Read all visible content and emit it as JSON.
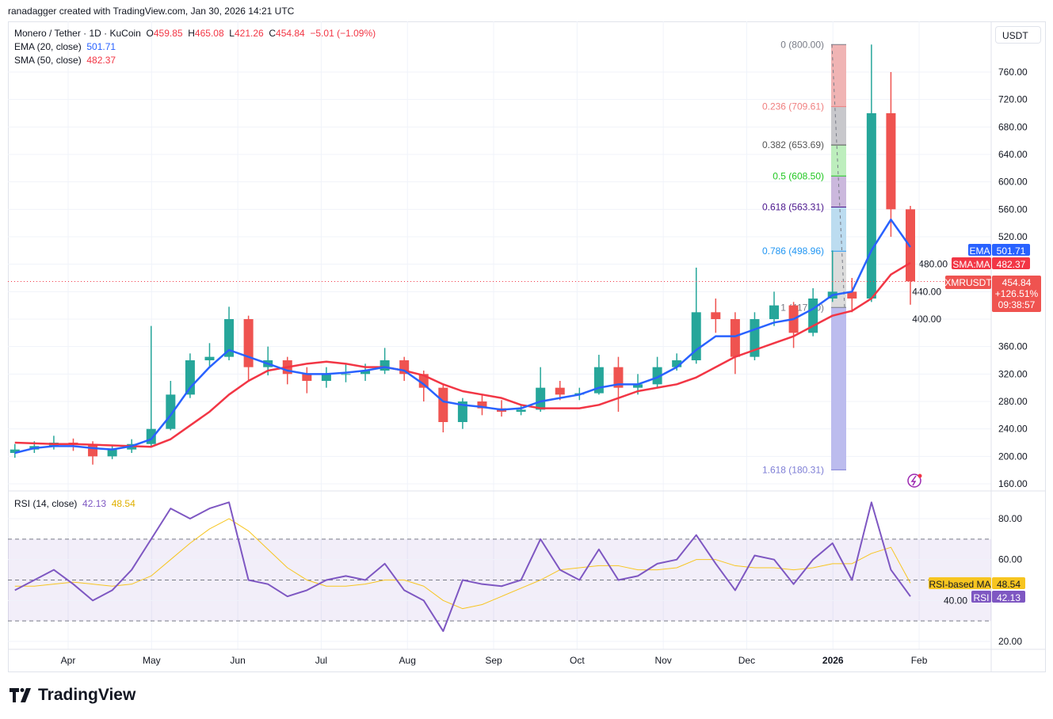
{
  "credit": "ranadagger created with TradingView.com, Jan 30, 2026 14:21 UTC",
  "legend": {
    "symbol": "Monero / Tether · 1D · KuCoin",
    "o_label": "O",
    "o": "459.85",
    "h_label": "H",
    "h": "465.08",
    "l_label": "L",
    "l": "421.26",
    "c_label": "C",
    "c": "454.84",
    "change": "−5.01 (−1.09%)",
    "ema_label": "EMA (20, close)",
    "ema": "501.71",
    "sma_label": "SMA (50, close)",
    "sma": "482.37",
    "rsi_label": "RSI (14, close)",
    "rsi": "42.13",
    "rsi_ma": "48.54"
  },
  "currency": "USDT",
  "brand": "TradingView",
  "badges": {
    "ema_name": "EMA",
    "ema_value": "501.71",
    "sma_name": "SMA:MA",
    "sma_value": "482.37",
    "symbol_name": "XMRUSDT",
    "price": "454.84",
    "change_pct": "+126.51%",
    "countdown": "09:38:57",
    "rsi_ma_name": "RSI-based MA",
    "rsi_ma_value": "48.54",
    "rsi_name": "RSI",
    "rsi_value": "42.13"
  },
  "colors": {
    "up": "#26a69a",
    "down": "#ef5350",
    "ema": "#2962ff",
    "sma": "#f23645",
    "rsi": "#7e57c2",
    "rsi_ma": "#f7c520"
  },
  "chart_data": [
    {
      "type": "candlestick",
      "title": "Monero / Tether · 1D · KuCoin",
      "ylim": [
        150,
        820
      ],
      "y_ticks": [
        "160.00",
        "200.00",
        "240.00",
        "280.00",
        "320.00",
        "360.00",
        "400.00",
        "440.00",
        "480.00",
        "520.00",
        "560.00",
        "600.00",
        "640.00",
        "680.00",
        "720.00",
        "760.00"
      ],
      "x_ticks": [
        {
          "label": "Apr",
          "date": "2025-04-01"
        },
        {
          "label": "May",
          "date": "2025-05-01"
        },
        {
          "label": "Jun",
          "date": "2025-06-01"
        },
        {
          "label": "Jul",
          "date": "2025-07-01"
        },
        {
          "label": "Aug",
          "date": "2025-08-01"
        },
        {
          "label": "Sep",
          "date": "2025-09-01"
        },
        {
          "label": "Oct",
          "date": "2025-10-01"
        },
        {
          "label": "Nov",
          "date": "2025-11-01"
        },
        {
          "label": "Dec",
          "date": "2025-12-01"
        },
        {
          "label": "2026",
          "date": "2026-01-01"
        },
        {
          "label": "Feb",
          "date": "2026-02-01"
        }
      ],
      "last_price": 454.84,
      "candles_weekly_approx": [
        {
          "d": "2025-03-10",
          "o": 205,
          "h": 218,
          "l": 198,
          "c": 210
        },
        {
          "d": "2025-03-17",
          "o": 210,
          "h": 222,
          "l": 205,
          "c": 215
        },
        {
          "d": "2025-03-24",
          "o": 215,
          "h": 230,
          "l": 210,
          "c": 220
        },
        {
          "d": "2025-03-31",
          "o": 220,
          "h": 226,
          "l": 208,
          "c": 218
        },
        {
          "d": "2025-04-07",
          "o": 218,
          "h": 222,
          "l": 188,
          "c": 200
        },
        {
          "d": "2025-04-14",
          "o": 200,
          "h": 215,
          "l": 196,
          "c": 210
        },
        {
          "d": "2025-04-21",
          "o": 210,
          "h": 225,
          "l": 205,
          "c": 218
        },
        {
          "d": "2025-04-28",
          "o": 218,
          "h": 390,
          "l": 215,
          "c": 240
        },
        {
          "d": "2025-05-05",
          "o": 240,
          "h": 310,
          "l": 238,
          "c": 290
        },
        {
          "d": "2025-05-12",
          "o": 290,
          "h": 350,
          "l": 285,
          "c": 340
        },
        {
          "d": "2025-05-19",
          "o": 340,
          "h": 365,
          "l": 330,
          "c": 345
        },
        {
          "d": "2025-05-26",
          "o": 345,
          "h": 418,
          "l": 340,
          "c": 400
        },
        {
          "d": "2025-06-02",
          "o": 400,
          "h": 405,
          "l": 310,
          "c": 330
        },
        {
          "d": "2025-06-09",
          "o": 330,
          "h": 360,
          "l": 318,
          "c": 340
        },
        {
          "d": "2025-06-16",
          "o": 340,
          "h": 345,
          "l": 305,
          "c": 320
        },
        {
          "d": "2025-06-23",
          "o": 320,
          "h": 330,
          "l": 292,
          "c": 310
        },
        {
          "d": "2025-06-30",
          "o": 310,
          "h": 330,
          "l": 300,
          "c": 320
        },
        {
          "d": "2025-07-07",
          "o": 320,
          "h": 335,
          "l": 308,
          "c": 320
        },
        {
          "d": "2025-07-14",
          "o": 320,
          "h": 335,
          "l": 310,
          "c": 325
        },
        {
          "d": "2025-07-21",
          "o": 325,
          "h": 358,
          "l": 320,
          "c": 340
        },
        {
          "d": "2025-07-28",
          "o": 340,
          "h": 345,
          "l": 310,
          "c": 320
        },
        {
          "d": "2025-08-04",
          "o": 320,
          "h": 325,
          "l": 280,
          "c": 300
        },
        {
          "d": "2025-08-11",
          "o": 300,
          "h": 305,
          "l": 235,
          "c": 250
        },
        {
          "d": "2025-08-18",
          "o": 250,
          "h": 285,
          "l": 240,
          "c": 280
        },
        {
          "d": "2025-08-25",
          "o": 280,
          "h": 290,
          "l": 260,
          "c": 270
        },
        {
          "d": "2025-09-01",
          "o": 270,
          "h": 282,
          "l": 258,
          "c": 265
        },
        {
          "d": "2025-09-08",
          "o": 265,
          "h": 275,
          "l": 260,
          "c": 268
        },
        {
          "d": "2025-09-15",
          "o": 268,
          "h": 330,
          "l": 265,
          "c": 300
        },
        {
          "d": "2025-09-22",
          "o": 300,
          "h": 310,
          "l": 282,
          "c": 290
        },
        {
          "d": "2025-09-29",
          "o": 290,
          "h": 300,
          "l": 282,
          "c": 292
        },
        {
          "d": "2025-10-06",
          "o": 292,
          "h": 348,
          "l": 290,
          "c": 330
        },
        {
          "d": "2025-10-13",
          "o": 330,
          "h": 345,
          "l": 265,
          "c": 300
        },
        {
          "d": "2025-10-20",
          "o": 300,
          "h": 320,
          "l": 290,
          "c": 305
        },
        {
          "d": "2025-10-27",
          "o": 305,
          "h": 345,
          "l": 300,
          "c": 330
        },
        {
          "d": "2025-11-03",
          "o": 330,
          "h": 350,
          "l": 325,
          "c": 340
        },
        {
          "d": "2025-11-10",
          "o": 340,
          "h": 475,
          "l": 335,
          "c": 410
        },
        {
          "d": "2025-11-17",
          "o": 410,
          "h": 430,
          "l": 380,
          "c": 400
        },
        {
          "d": "2025-11-24",
          "o": 400,
          "h": 410,
          "l": 320,
          "c": 345
        },
        {
          "d": "2025-12-01",
          "o": 345,
          "h": 410,
          "l": 340,
          "c": 400
        },
        {
          "d": "2025-12-08",
          "o": 400,
          "h": 440,
          "l": 390,
          "c": 420
        },
        {
          "d": "2025-12-15",
          "o": 420,
          "h": 425,
          "l": 358,
          "c": 380
        },
        {
          "d": "2025-12-22",
          "o": 380,
          "h": 445,
          "l": 375,
          "c": 430
        },
        {
          "d": "2025-12-29",
          "o": 430,
          "h": 500,
          "l": 425,
          "c": 440
        },
        {
          "d": "2026-01-05",
          "o": 440,
          "h": 460,
          "l": 410,
          "c": 430
        },
        {
          "d": "2026-01-12",
          "o": 430,
          "h": 800,
          "l": 425,
          "c": 700
        },
        {
          "d": "2026-01-19",
          "o": 700,
          "h": 760,
          "l": 520,
          "c": 560
        },
        {
          "d": "2026-01-26",
          "o": 560,
          "h": 565,
          "l": 421,
          "c": 455
        }
      ],
      "ema20": [
        205,
        212,
        215,
        215,
        212,
        210,
        215,
        225,
        260,
        300,
        330,
        355,
        345,
        335,
        325,
        320,
        320,
        322,
        325,
        330,
        325,
        305,
        280,
        275,
        272,
        268,
        270,
        280,
        285,
        290,
        300,
        305,
        305,
        315,
        330,
        355,
        375,
        375,
        385,
        395,
        400,
        415,
        435,
        440,
        500,
        545,
        505
      ],
      "sma50": [
        220,
        219,
        218,
        218,
        217,
        216,
        215,
        214,
        225,
        245,
        265,
        290,
        310,
        325,
        330,
        335,
        338,
        335,
        330,
        330,
        325,
        318,
        305,
        295,
        290,
        285,
        275,
        270,
        270,
        270,
        275,
        285,
        295,
        300,
        305,
        315,
        330,
        345,
        355,
        365,
        375,
        390,
        405,
        412,
        430,
        465,
        482
      ],
      "fibonacci": [
        {
          "level": "0",
          "price": "800.00",
          "color": "#787b86"
        },
        {
          "level": "0.236",
          "price": "709.61",
          "color": "#f08080"
        },
        {
          "level": "0.382",
          "price": "653.69",
          "color": "#555555"
        },
        {
          "level": "0.5",
          "price": "608.50",
          "color": "#22c722"
        },
        {
          "level": "0.618",
          "price": "563.31",
          "color": "#4a148c"
        },
        {
          "level": "0.786",
          "price": "498.96",
          "color": "#2196f3"
        },
        {
          "level": "1",
          "price": "417.00",
          "color": "#787b86"
        },
        {
          "level": "1.618",
          "price": "180.31",
          "color": "#7e7ed6"
        }
      ]
    },
    {
      "type": "line",
      "title": "RSI (14, close)",
      "ylim": [
        15,
        95
      ],
      "y_ticks": [
        "20.00",
        "40.00",
        "60.00",
        "80.00"
      ],
      "band": [
        30,
        70
      ],
      "rsi": [
        45,
        50,
        55,
        48,
        40,
        45,
        55,
        70,
        85,
        80,
        85,
        88,
        50,
        48,
        42,
        45,
        50,
        52,
        50,
        58,
        45,
        40,
        25,
        50,
        48,
        47,
        50,
        70,
        55,
        50,
        65,
        50,
        52,
        58,
        60,
        72,
        58,
        45,
        62,
        60,
        48,
        60,
        68,
        50,
        88,
        55,
        42
      ],
      "rsi_ma": [
        47,
        47,
        48,
        49,
        48,
        47,
        48,
        52,
        60,
        68,
        75,
        80,
        74,
        65,
        56,
        50,
        47,
        47,
        48,
        50,
        50,
        47,
        40,
        36,
        38,
        42,
        46,
        50,
        55,
        56,
        57,
        57,
        55,
        55,
        56,
        60,
        60,
        57,
        56,
        56,
        55,
        56,
        58,
        58,
        63,
        66,
        48.5
      ]
    }
  ]
}
